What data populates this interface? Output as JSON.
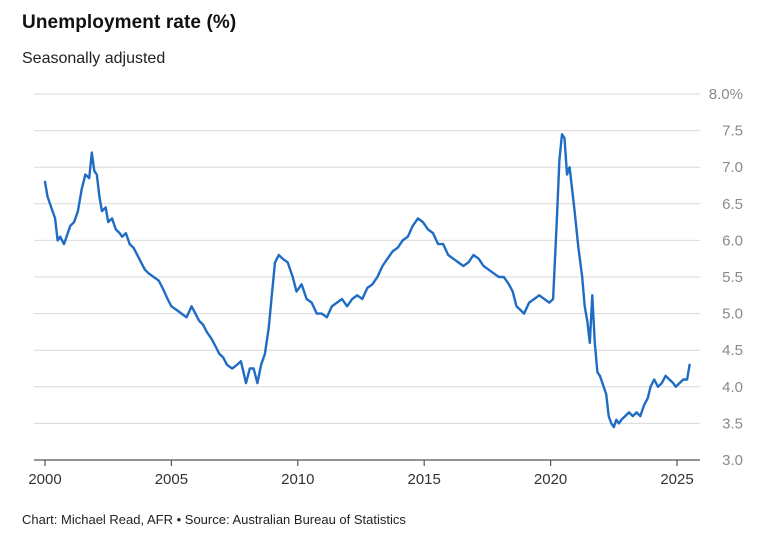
{
  "header": {
    "title": "Unemployment rate (%)",
    "subtitle": "Seasonally adjusted"
  },
  "footer": {
    "source": "Chart: Michael Read, AFR • Source: Australian Bureau of Statistics"
  },
  "colors": {
    "line": "#1f6cc4",
    "grid": "#d9d9d9",
    "axis": "#555555"
  },
  "chart_data": {
    "type": "line",
    "title": "Unemployment rate (%)",
    "subtitle": "Seasonally adjusted",
    "xlabel": "",
    "ylabel": "",
    "xlim": [
      1999.8,
      2025.9
    ],
    "ylim": [
      3.0,
      8.0
    ],
    "x_ticks": [
      2000,
      2005,
      2010,
      2015,
      2020,
      2025
    ],
    "x_tick_labels": [
      "2000",
      "2005",
      "2010",
      "2015",
      "2020",
      "2025"
    ],
    "y_ticks": [
      3.0,
      3.5,
      4.0,
      4.5,
      5.0,
      5.5,
      6.0,
      6.5,
      7.0,
      7.5,
      8.0
    ],
    "y_tick_labels": [
      "3.0",
      "3.5",
      "4.0",
      "4.5",
      "5.0",
      "5.5",
      "6.0",
      "6.5",
      "7.0",
      "7.5",
      "8.0%"
    ],
    "grid": true,
    "series": [
      {
        "points": [
          [
            2000.0,
            6.8
          ],
          [
            2000.1,
            6.6
          ],
          [
            2000.25,
            6.45
          ],
          [
            2000.4,
            6.3
          ],
          [
            2000.5,
            6.0
          ],
          [
            2000.6,
            6.05
          ],
          [
            2000.75,
            5.95
          ],
          [
            2000.9,
            6.1
          ],
          [
            2001.0,
            6.2
          ],
          [
            2001.15,
            6.25
          ],
          [
            2001.3,
            6.4
          ],
          [
            2001.45,
            6.7
          ],
          [
            2001.6,
            6.9
          ],
          [
            2001.75,
            6.85
          ],
          [
            2001.85,
            7.2
          ],
          [
            2001.95,
            6.95
          ],
          [
            2002.05,
            6.9
          ],
          [
            2002.15,
            6.6
          ],
          [
            2002.25,
            6.4
          ],
          [
            2002.4,
            6.45
          ],
          [
            2002.5,
            6.25
          ],
          [
            2002.65,
            6.3
          ],
          [
            2002.8,
            6.15
          ],
          [
            2002.95,
            6.1
          ],
          [
            2003.05,
            6.05
          ],
          [
            2003.2,
            6.1
          ],
          [
            2003.35,
            5.95
          ],
          [
            2003.5,
            5.9
          ],
          [
            2003.65,
            5.8
          ],
          [
            2003.8,
            5.7
          ],
          [
            2003.95,
            5.6
          ],
          [
            2004.1,
            5.55
          ],
          [
            2004.3,
            5.5
          ],
          [
            2004.5,
            5.45
          ],
          [
            2004.65,
            5.35
          ],
          [
            2004.85,
            5.2
          ],
          [
            2005.0,
            5.1
          ],
          [
            2005.2,
            5.05
          ],
          [
            2005.4,
            5.0
          ],
          [
            2005.6,
            4.95
          ],
          [
            2005.8,
            5.1
          ],
          [
            2005.95,
            5.0
          ],
          [
            2006.1,
            4.9
          ],
          [
            2006.25,
            4.85
          ],
          [
            2006.4,
            4.75
          ],
          [
            2006.6,
            4.65
          ],
          [
            2006.75,
            4.55
          ],
          [
            2006.9,
            4.45
          ],
          [
            2007.05,
            4.4
          ],
          [
            2007.2,
            4.3
          ],
          [
            2007.4,
            4.25
          ],
          [
            2007.6,
            4.3
          ],
          [
            2007.75,
            4.35
          ],
          [
            2007.95,
            4.05
          ],
          [
            2008.1,
            4.25
          ],
          [
            2008.25,
            4.25
          ],
          [
            2008.4,
            4.05
          ],
          [
            2008.55,
            4.3
          ],
          [
            2008.7,
            4.45
          ],
          [
            2008.85,
            4.8
          ],
          [
            2009.0,
            5.35
          ],
          [
            2009.1,
            5.7
          ],
          [
            2009.25,
            5.8
          ],
          [
            2009.4,
            5.75
          ],
          [
            2009.6,
            5.7
          ],
          [
            2009.8,
            5.5
          ],
          [
            2009.95,
            5.3
          ],
          [
            2010.15,
            5.4
          ],
          [
            2010.35,
            5.2
          ],
          [
            2010.55,
            5.15
          ],
          [
            2010.75,
            5.0
          ],
          [
            2010.95,
            5.0
          ],
          [
            2011.15,
            4.95
          ],
          [
            2011.35,
            5.1
          ],
          [
            2011.55,
            5.15
          ],
          [
            2011.75,
            5.2
          ],
          [
            2011.95,
            5.1
          ],
          [
            2012.15,
            5.2
          ],
          [
            2012.35,
            5.25
          ],
          [
            2012.55,
            5.2
          ],
          [
            2012.75,
            5.35
          ],
          [
            2012.95,
            5.4
          ],
          [
            2013.15,
            5.5
          ],
          [
            2013.35,
            5.65
          ],
          [
            2013.55,
            5.75
          ],
          [
            2013.75,
            5.85
          ],
          [
            2013.95,
            5.9
          ],
          [
            2014.15,
            6.0
          ],
          [
            2014.35,
            6.05
          ],
          [
            2014.55,
            6.2
          ],
          [
            2014.75,
            6.3
          ],
          [
            2014.95,
            6.25
          ],
          [
            2015.15,
            6.15
          ],
          [
            2015.35,
            6.1
          ],
          [
            2015.55,
            5.95
          ],
          [
            2015.75,
            5.95
          ],
          [
            2015.95,
            5.8
          ],
          [
            2016.15,
            5.75
          ],
          [
            2016.35,
            5.7
          ],
          [
            2016.55,
            5.65
          ],
          [
            2016.75,
            5.7
          ],
          [
            2016.95,
            5.8
          ],
          [
            2017.15,
            5.75
          ],
          [
            2017.35,
            5.65
          ],
          [
            2017.55,
            5.6
          ],
          [
            2017.75,
            5.55
          ],
          [
            2017.95,
            5.5
          ],
          [
            2018.15,
            5.5
          ],
          [
            2018.35,
            5.4
          ],
          [
            2018.5,
            5.3
          ],
          [
            2018.65,
            5.1
          ],
          [
            2018.8,
            5.05
          ],
          [
            2018.95,
            5.0
          ],
          [
            2019.15,
            5.15
          ],
          [
            2019.35,
            5.2
          ],
          [
            2019.55,
            5.25
          ],
          [
            2019.75,
            5.2
          ],
          [
            2019.95,
            5.15
          ],
          [
            2020.1,
            5.2
          ],
          [
            2020.25,
            6.3
          ],
          [
            2020.35,
            7.1
          ],
          [
            2020.45,
            7.45
          ],
          [
            2020.55,
            7.4
          ],
          [
            2020.65,
            6.9
          ],
          [
            2020.75,
            7.0
          ],
          [
            2020.85,
            6.7
          ],
          [
            2020.95,
            6.4
          ],
          [
            2021.1,
            5.9
          ],
          [
            2021.25,
            5.5
          ],
          [
            2021.35,
            5.1
          ],
          [
            2021.45,
            4.9
          ],
          [
            2021.55,
            4.6
          ],
          [
            2021.65,
            5.25
          ],
          [
            2021.75,
            4.6
          ],
          [
            2021.85,
            4.2
          ],
          [
            2021.95,
            4.15
          ],
          [
            2022.1,
            4.0
          ],
          [
            2022.2,
            3.9
          ],
          [
            2022.3,
            3.6
          ],
          [
            2022.4,
            3.5
          ],
          [
            2022.5,
            3.45
          ],
          [
            2022.6,
            3.55
          ],
          [
            2022.7,
            3.5
          ],
          [
            2022.8,
            3.55
          ],
          [
            2022.95,
            3.6
          ],
          [
            2023.1,
            3.65
          ],
          [
            2023.25,
            3.6
          ],
          [
            2023.4,
            3.65
          ],
          [
            2023.55,
            3.6
          ],
          [
            2023.7,
            3.75
          ],
          [
            2023.85,
            3.85
          ],
          [
            2023.95,
            4.0
          ],
          [
            2024.1,
            4.1
          ],
          [
            2024.25,
            4.0
          ],
          [
            2024.4,
            4.05
          ],
          [
            2024.55,
            4.15
          ],
          [
            2024.7,
            4.1
          ],
          [
            2024.85,
            4.05
          ],
          [
            2024.95,
            4.0
          ],
          [
            2025.1,
            4.05
          ],
          [
            2025.25,
            4.1
          ],
          [
            2025.4,
            4.1
          ],
          [
            2025.5,
            4.3
          ]
        ]
      }
    ]
  }
}
